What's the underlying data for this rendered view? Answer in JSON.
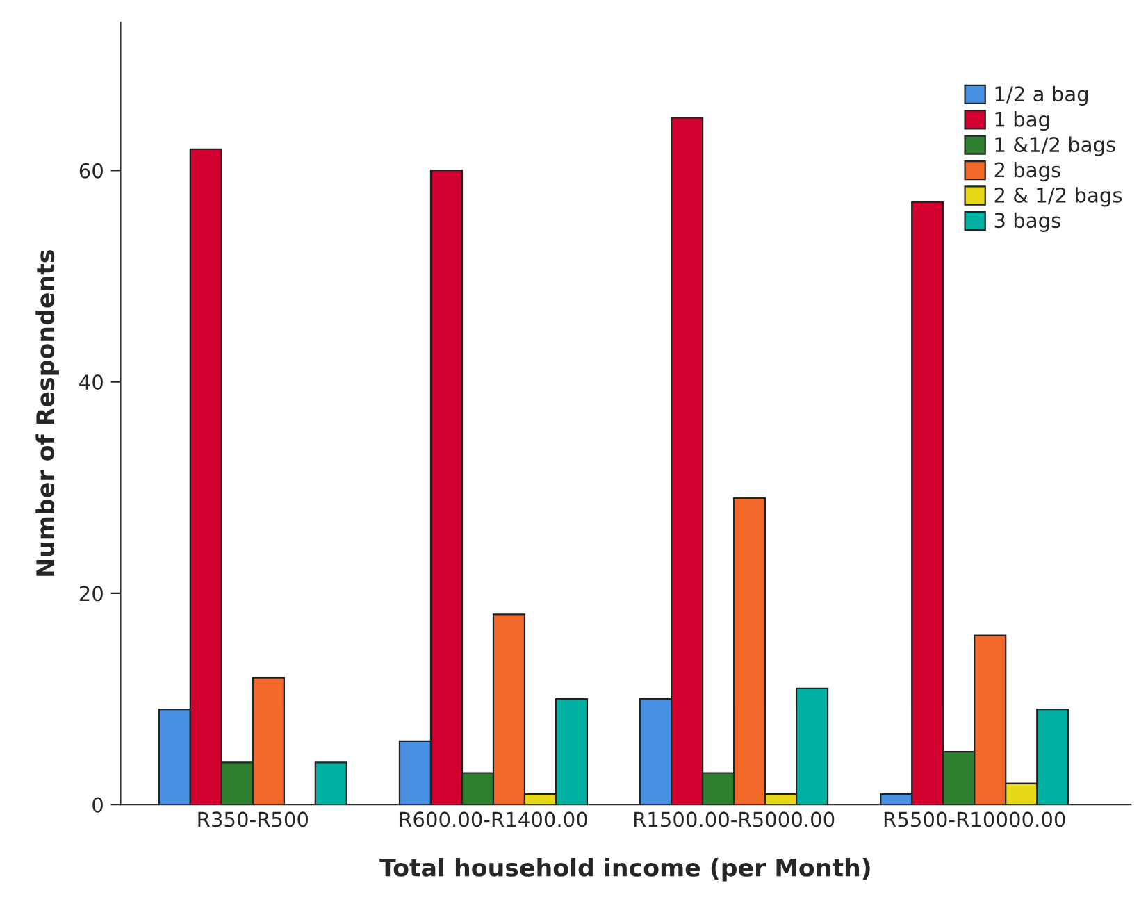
{
  "chart_data": {
    "type": "bar",
    "xlabel": "Total household income (per Month)",
    "ylabel": "Number of Respondents",
    "categories": [
      "R350-R500",
      "R600.00-R1400.00",
      "R1500.00-R5000.00",
      "R5500-R10000.00"
    ],
    "series": [
      {
        "name": "1/2 a bag",
        "color": "#4a90e2",
        "values": [
          9,
          6,
          10,
          1
        ]
      },
      {
        "name": "1 bag",
        "color": "#d2002e",
        "values": [
          62,
          60,
          65,
          57
        ]
      },
      {
        "name": "1 &1/2 bags",
        "color": "#2e8030",
        "values": [
          4,
          3,
          3,
          5
        ]
      },
      {
        "name": "2 bags",
        "color": "#f26828",
        "values": [
          12,
          18,
          29,
          16
        ]
      },
      {
        "name": "2 & 1/2 bags",
        "color": "#e8d81a",
        "values": [
          null,
          1,
          1,
          2
        ]
      },
      {
        "name": "3 bags",
        "color": "#00b0a0",
        "values": [
          4,
          10,
          11,
          9
        ]
      }
    ],
    "ylim": [
      0,
      74
    ],
    "yticks": [
      0,
      20,
      40,
      60
    ],
    "grid": false,
    "legend": "top right"
  }
}
